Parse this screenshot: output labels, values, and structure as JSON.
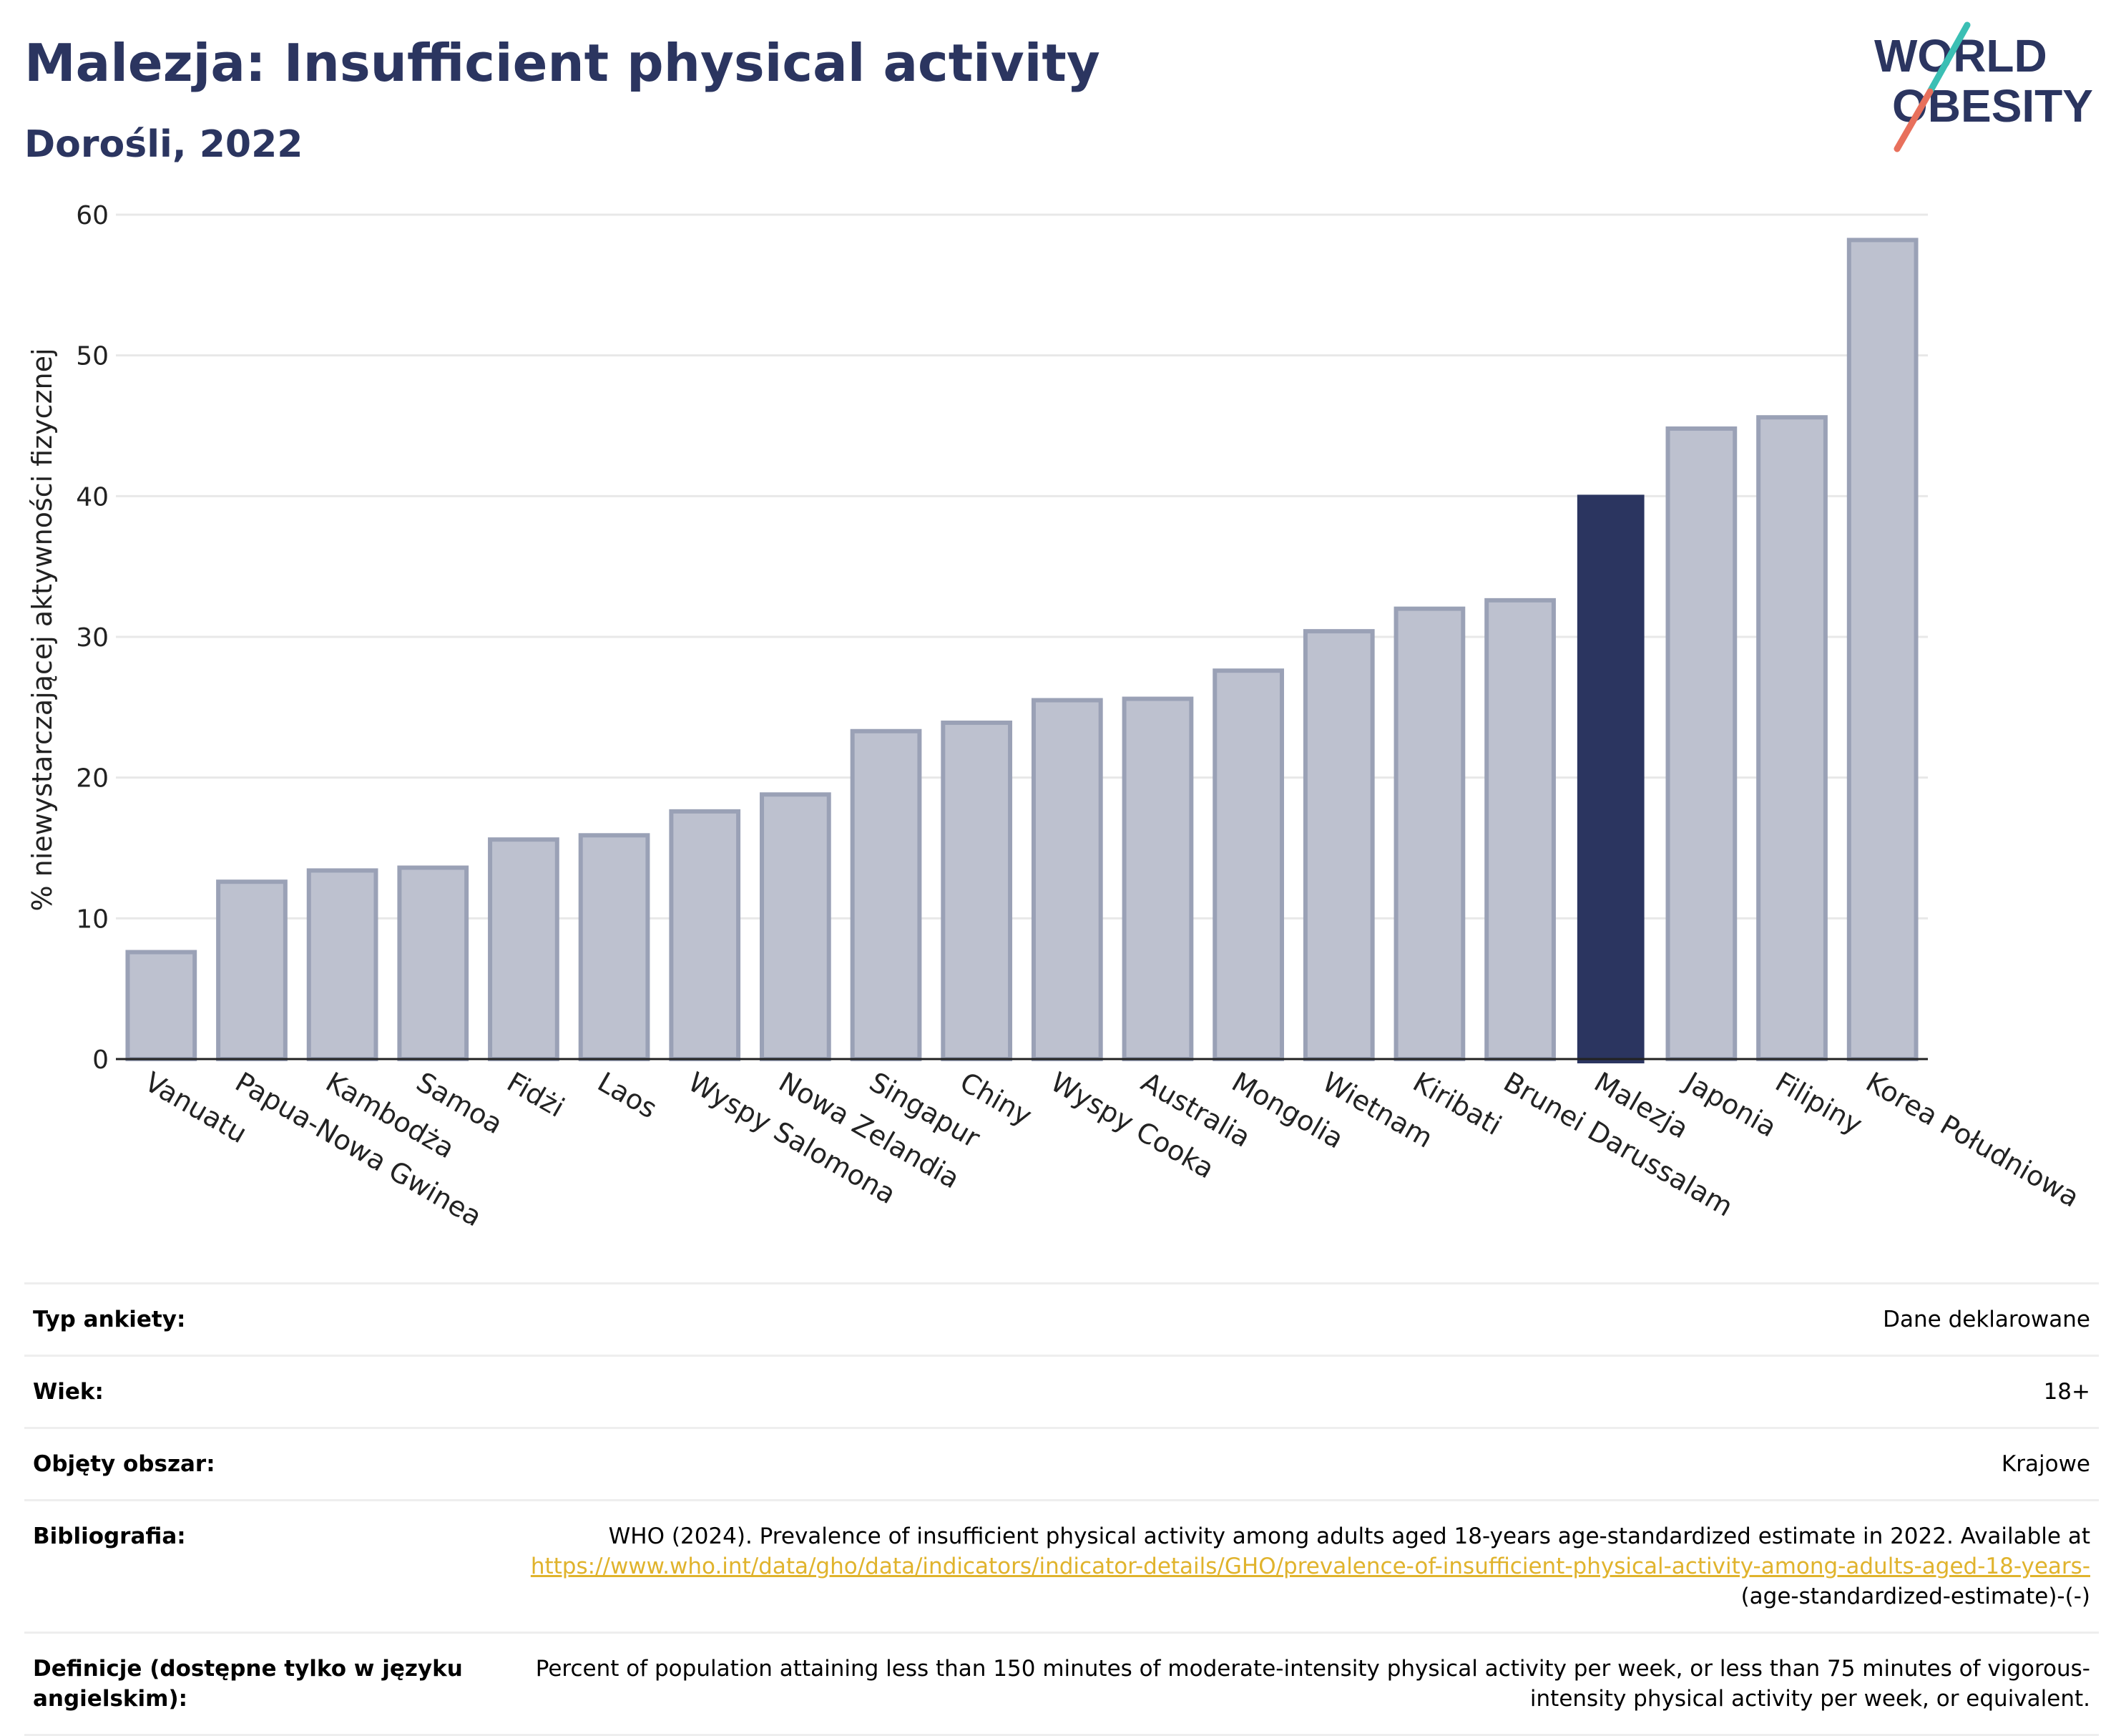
{
  "header": {
    "title": "Malezja: Insufficient physical activity",
    "subtitle": "Dorośli, 2022"
  },
  "logo": {
    "line1": "WORLD",
    "line2": "OBESITY",
    "text_color": "#2b3560",
    "slash_top_color": "#3bbfb4",
    "slash_bottom_color": "#e8705c"
  },
  "colors": {
    "bar": "#bdc1cf",
    "bar_stroke": "#9aa1b6",
    "highlight": "#2b3560",
    "grid": "#e8e8e8",
    "axis": "#222222"
  },
  "chart_data": {
    "type": "bar",
    "ylabel": "% niewystarczającej aktywności fizycznej",
    "ylim": [
      0,
      60
    ],
    "yticks": [
      0,
      10,
      20,
      30,
      40,
      50,
      60
    ],
    "grid": true,
    "highlight": "Malezja",
    "categories": [
      "Vanuatu",
      "Papua-Nowa Gwinea",
      "Kambodża",
      "Samoa",
      "Fidżi",
      "Laos",
      "Wyspy Salomona",
      "Nowa Zelandia",
      "Singapur",
      "Chiny",
      "Wyspy Cooka",
      "Australia",
      "Mongolia",
      "Wietnam",
      "Kiribati",
      "Brunei Darussalam",
      "Malezja",
      "Japonia",
      "Filipiny",
      "Korea Południowa"
    ],
    "values": [
      7.6,
      12.6,
      13.4,
      13.6,
      15.6,
      15.9,
      17.6,
      18.8,
      23.3,
      23.9,
      25.5,
      25.6,
      27.6,
      30.4,
      32.0,
      32.6,
      40.1,
      44.8,
      45.6,
      58.2
    ]
  },
  "info_table": [
    {
      "label": "Typ ankiety:",
      "value": "Dane deklarowane"
    },
    {
      "label": "Wiek:",
      "value": "18+"
    },
    {
      "label": "Objęty obszar:",
      "value": "Krajowe"
    },
    {
      "label": "Bibliografia:",
      "value_pre": "WHO (2024). Prevalence of insufficient physical activity among adults aged 18-years age-standardized estimate in 2022. Available at",
      "link": "https://www.who.int/data/gho/data/indicators/indicator-details/GHO/prevalence-of-insufficient-physical-activity-among-adults-aged-18-years-",
      "value_post": "(age-standardized-estimate)-(-)"
    },
    {
      "label": "Definicje (dostępne tylko w języku angielskim):",
      "value": "Percent of population attaining less than 150 minutes of moderate-intensity physical activity per week, or less than 75 minutes of vigorous-intensity physical activity per week, or equivalent."
    }
  ]
}
